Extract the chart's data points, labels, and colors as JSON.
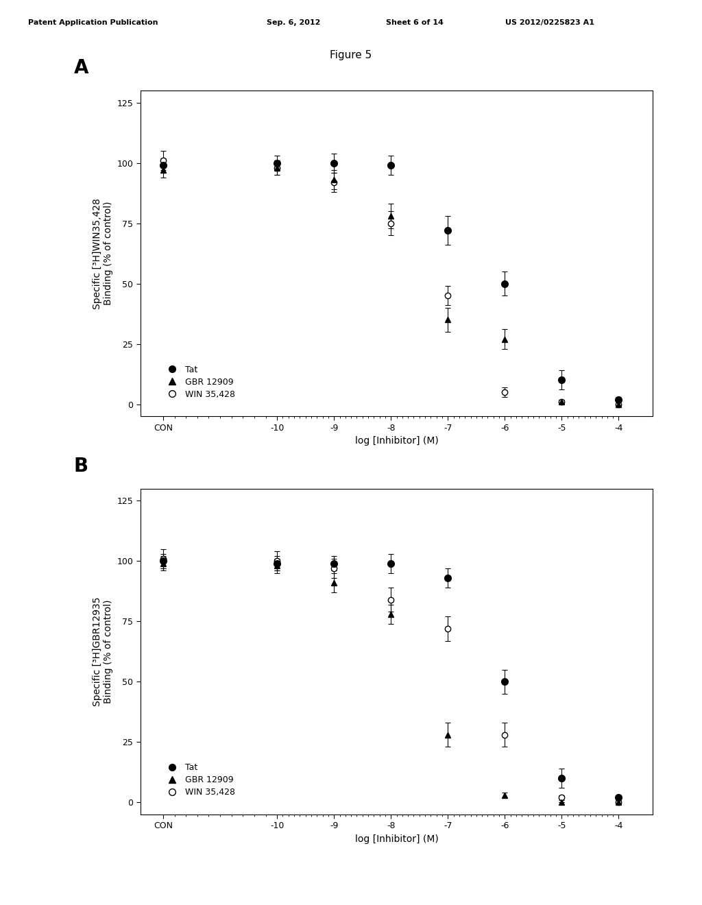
{
  "figure_title": "Figure 5",
  "patent_line1": "Patent Application Publication",
  "patent_line2": "Sep. 6, 2012",
  "patent_line3": "Sheet 6 of 14",
  "patent_line4": "US 2012/0225823 A1",
  "panel_A": {
    "ylabel": "Specific [³H]WIN35,428\nBinding (% of control)",
    "xlabel": "log [Inhibitor] (M)",
    "panel_label": "A",
    "ylim": [
      -5,
      130
    ],
    "yticks": [
      0,
      25,
      50,
      75,
      100,
      125
    ],
    "x_labels": [
      "CON",
      "-10",
      "-9",
      "-8",
      "-7",
      "-6",
      "-5",
      "-4"
    ],
    "Tat": {
      "x_data": [
        0,
        2,
        3,
        4,
        5,
        6,
        7,
        8
      ],
      "y_data": [
        99,
        100,
        100,
        99,
        72,
        50,
        10,
        2
      ],
      "yerr": [
        3,
        3,
        4,
        4,
        6,
        5,
        4,
        1
      ],
      "linestyle": "solid",
      "marker": "o",
      "filled": true,
      "label": "Tat",
      "ic50": 5.7
    },
    "GBR12909": {
      "x_data": [
        0,
        2,
        3,
        4,
        5,
        6,
        7,
        8
      ],
      "y_data": [
        97,
        98,
        93,
        78,
        35,
        27,
        1,
        0
      ],
      "yerr": [
        3,
        3,
        4,
        5,
        5,
        4,
        1,
        0
      ],
      "linestyle": "solid",
      "marker": "^",
      "filled": true,
      "label": "GBR 12909",
      "ic50": 5.2
    },
    "WIN35428": {
      "x_data": [
        0,
        2,
        3,
        4,
        5,
        6,
        7,
        8
      ],
      "y_data": [
        101,
        98,
        92,
        75,
        45,
        5,
        1,
        0
      ],
      "yerr": [
        4,
        3,
        4,
        5,
        4,
        2,
        0,
        0
      ],
      "linestyle": "dashed",
      "marker": "o",
      "filled": false,
      "label": "WIN 35,428",
      "ic50": 4.85
    }
  },
  "panel_B": {
    "ylabel": "Specific [³H]GBR12935\nBinding (% of control)",
    "xlabel": "log [Inhibitor] (M)",
    "panel_label": "B",
    "ylim": [
      -5,
      130
    ],
    "yticks": [
      0,
      25,
      50,
      75,
      100,
      125
    ],
    "x_labels": [
      "CON",
      "-10",
      "-9",
      "-8",
      "-7",
      "-6",
      "-5",
      "-4"
    ],
    "Tat": {
      "x_data": [
        0,
        2,
        3,
        4,
        5,
        6,
        7,
        8
      ],
      "y_data": [
        100,
        99,
        99,
        99,
        93,
        50,
        10,
        2
      ],
      "yerr": [
        3,
        3,
        3,
        4,
        4,
        5,
        4,
        1
      ],
      "linestyle": "solid",
      "marker": "o",
      "filled": true,
      "label": "Tat",
      "ic50": 6.0
    },
    "GBR12909": {
      "x_data": [
        0,
        2,
        3,
        4,
        5,
        6,
        7,
        8
      ],
      "y_data": [
        99,
        98,
        91,
        78,
        28,
        3,
        0,
        0
      ],
      "yerr": [
        3,
        3,
        4,
        4,
        5,
        1,
        0,
        0
      ],
      "linestyle": "dashed",
      "marker": "^",
      "filled": true,
      "label": "GBR 12909",
      "ic50": 5.05
    },
    "WIN35428": {
      "x_data": [
        0,
        2,
        3,
        4,
        5,
        6,
        7,
        8
      ],
      "y_data": [
        101,
        100,
        97,
        84,
        72,
        28,
        2,
        0
      ],
      "yerr": [
        4,
        4,
        4,
        5,
        5,
        5,
        1,
        0
      ],
      "linestyle": "solid",
      "marker": "o",
      "filled": false,
      "label": "WIN 35,428",
      "ic50": 5.55
    }
  },
  "fontsize_label": 10,
  "fontsize_panel": 20,
  "fontsize_tick": 9,
  "fontsize_legend": 9,
  "fontsize_header": 8,
  "fontsize_figtitle": 11
}
